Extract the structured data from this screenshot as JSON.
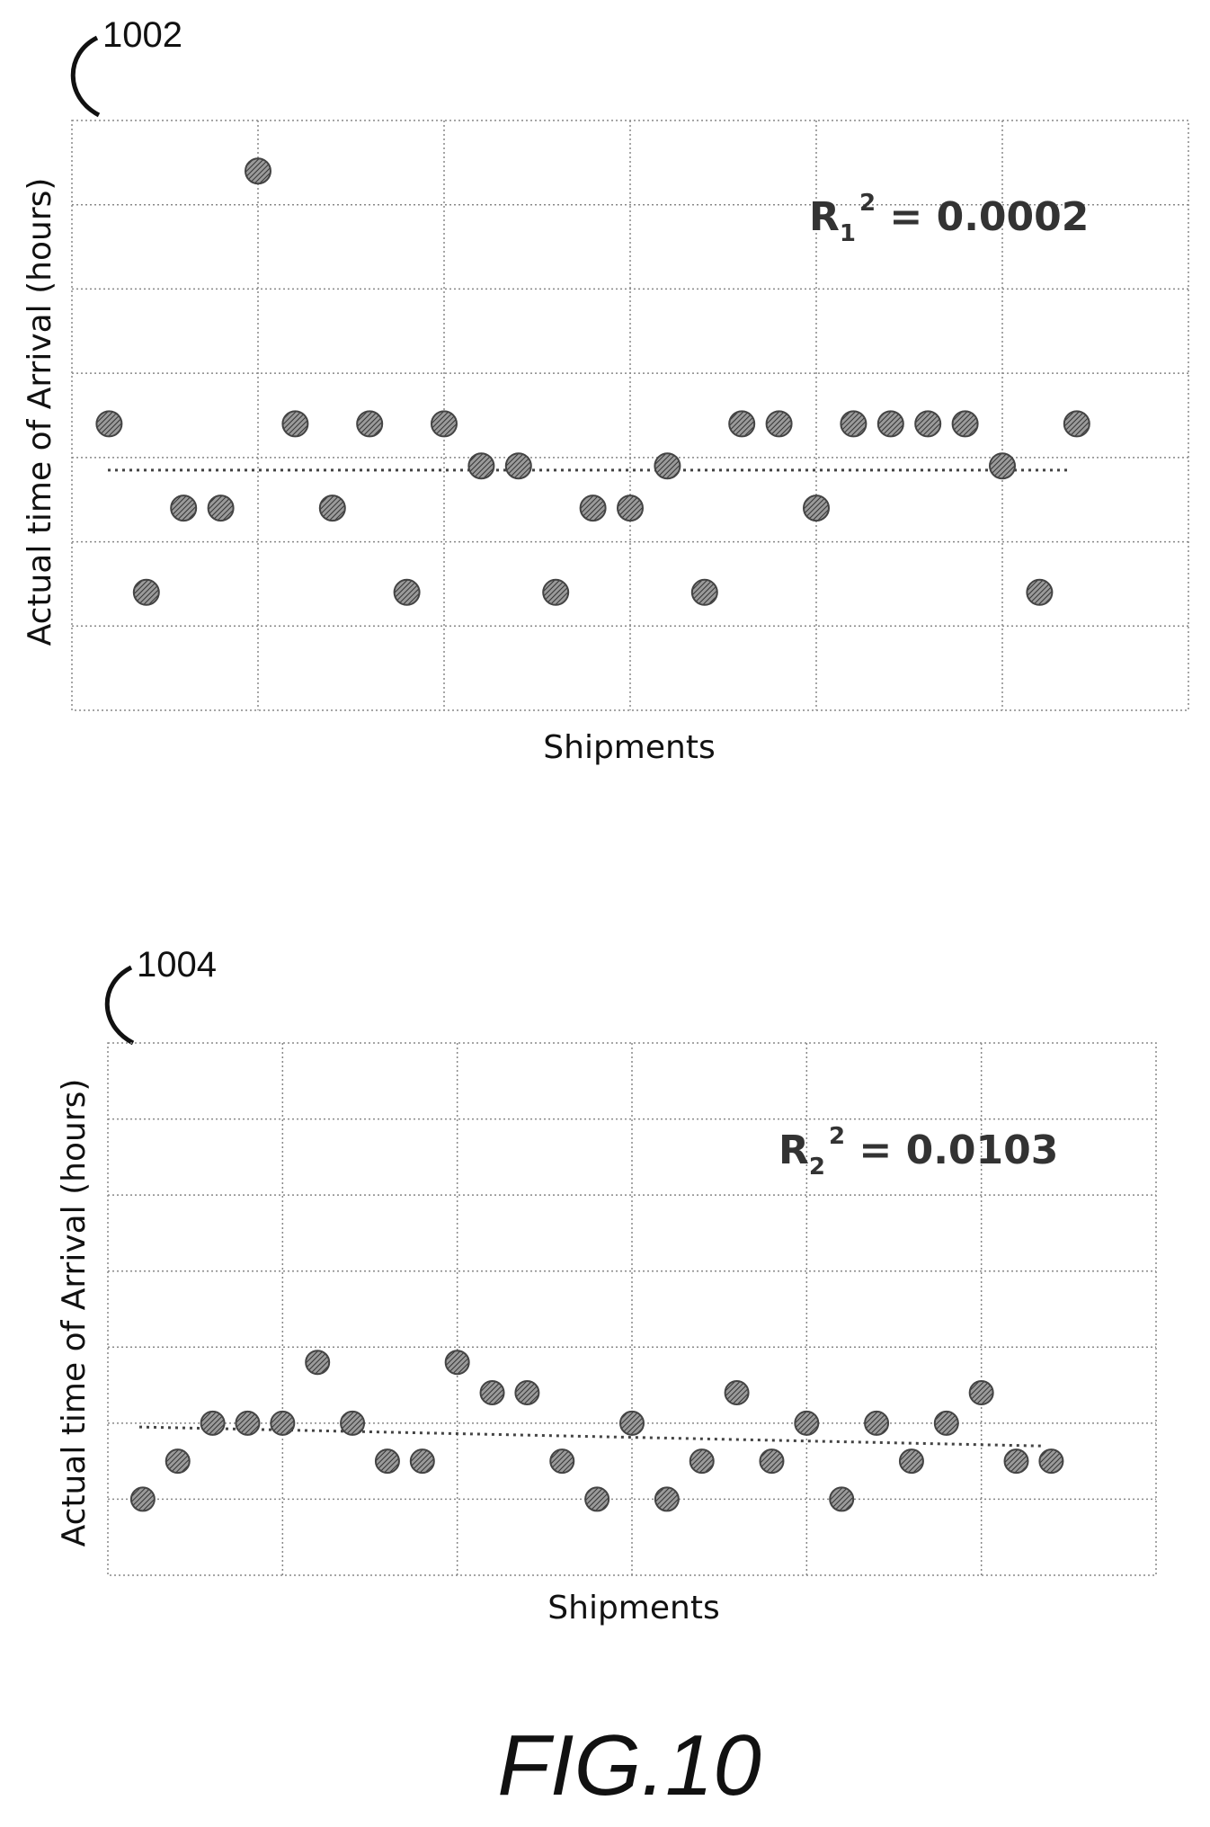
{
  "figure_label": "FIG.10",
  "chart_data": [
    {
      "type": "scatter",
      "ref": "1002",
      "xlabel": "Shipments",
      "ylabel": "Actual time of  Arrival (hours)",
      "annotation": {
        "base": "R",
        "sub": "1",
        "sup": "2",
        "value": " = 0.0002"
      },
      "xlim": [
        0,
        30
      ],
      "ylim": [
        0,
        7
      ],
      "x": [
        1,
        2,
        3,
        4,
        5,
        6,
        7,
        8,
        9,
        10,
        11,
        12,
        13,
        14,
        15,
        16,
        17,
        18,
        19,
        20,
        21,
        22,
        23,
        24,
        25,
        26,
        27
      ],
      "y": [
        3.4,
        1.4,
        2.4,
        2.4,
        6.4,
        3.4,
        2.4,
        3.4,
        1.4,
        3.4,
        2.9,
        2.9,
        1.4,
        2.4,
        2.4,
        2.9,
        1.4,
        3.4,
        3.4,
        2.4,
        3.4,
        3.4,
        3.4,
        3.4,
        2.9,
        1.4,
        3.4
      ],
      "trendline": {
        "style": "dotted",
        "y": [
          2.85,
          2.85
        ]
      }
    },
    {
      "type": "scatter",
      "ref": "1004",
      "xlabel": "Shipments",
      "ylabel": "Actual time of Arrival (hours)",
      "annotation": {
        "base": "R",
        "sub": "2",
        "sup": "2",
        "value": " = 0.0103"
      },
      "xlim": [
        0,
        30
      ],
      "ylim": [
        0,
        7
      ],
      "x": [
        1,
        2,
        3,
        4,
        5,
        6,
        7,
        8,
        9,
        10,
        11,
        12,
        13,
        14,
        15,
        16,
        17,
        18,
        19,
        20,
        21,
        22,
        23,
        24,
        25,
        26,
        27
      ],
      "y": [
        1,
        1.5,
        2,
        2,
        2,
        2.8,
        2,
        1.5,
        1.5,
        2.8,
        2.4,
        2.4,
        1.5,
        1,
        2,
        1,
        1.5,
        2.4,
        1.5,
        2,
        1,
        2,
        1.5,
        2,
        2.4,
        1.5,
        1.5
      ],
      "trendline": {
        "style": "dotted",
        "y": [
          1.95,
          1.7
        ]
      }
    }
  ]
}
